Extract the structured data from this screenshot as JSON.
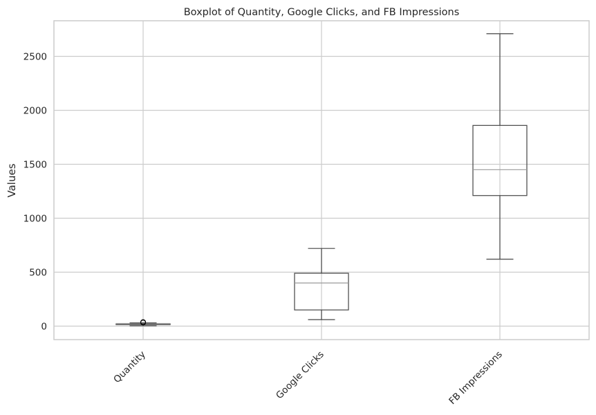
{
  "chart_data": {
    "type": "boxplot",
    "title": "Boxplot of Quantity, Google Clicks, and FB Impressions",
    "xlabel": "",
    "ylabel": "Values",
    "categories": [
      "Quantity",
      "Google Clicks",
      "FB Impressions"
    ],
    "boxes": [
      {
        "name": "Quantity",
        "whisker_low": 3,
        "q1": 13,
        "median": 18,
        "q3": 22,
        "whisker_high": 30,
        "outliers": [
          34,
          37
        ]
      },
      {
        "name": "Google Clicks",
        "whisker_low": 60,
        "q1": 150,
        "median": 400,
        "q3": 490,
        "whisker_high": 720,
        "outliers": []
      },
      {
        "name": "FB Impressions",
        "whisker_low": 620,
        "q1": 1210,
        "median": 1450,
        "q3": 1860,
        "whisker_high": 2710,
        "outliers": []
      }
    ],
    "yticks": [
      0,
      500,
      1000,
      1500,
      2000,
      2500
    ],
    "ylim": [
      -125,
      2830
    ],
    "grid": true,
    "xtick_rotation": 45,
    "colors": {
      "box_edge": "#444444",
      "median": "#9a9a9a",
      "grid": "#cccccc",
      "spine": "#cccccc"
    }
  }
}
